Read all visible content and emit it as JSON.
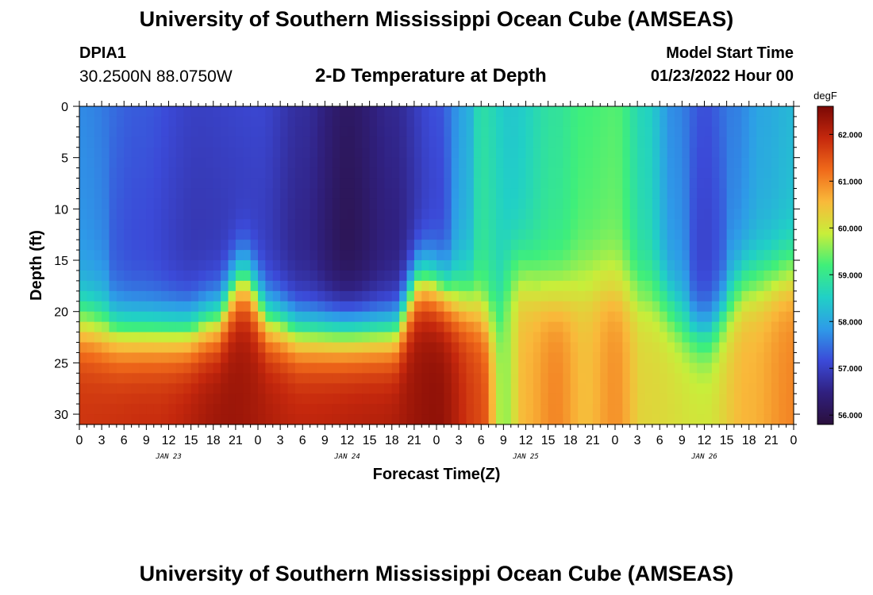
{
  "page": {
    "title_top": "University of Southern Mississippi Ocean Cube (AMSEAS)",
    "title_bottom": "University of Southern Mississippi Ocean Cube (AMSEAS)",
    "station_id": "DPIA1",
    "coordinates": "30.2500N  88.0750W",
    "subtitle": "2-D Temperature at Depth",
    "model_start_label": "Model Start Time",
    "model_start_value": "01/23/2022 Hour 00"
  },
  "chart_data": {
    "type": "heatmap",
    "title": "2-D Temperature at Depth",
    "xlabel": "Forecast Time(Z)",
    "ylabel": "Depth (ft)",
    "y_inverted": true,
    "ylim": [
      0,
      31
    ],
    "y_ticks": [
      0,
      5,
      10,
      15,
      20,
      25,
      30
    ],
    "xlim": [
      0,
      96
    ],
    "x_tick_step_hours": 3,
    "x_tick_labels": [
      "0",
      "3",
      "6",
      "9",
      "12",
      "15",
      "18",
      "21",
      "0",
      "3",
      "6",
      "9",
      "12",
      "15",
      "18",
      "21",
      "0",
      "3",
      "6",
      "9",
      "12",
      "15",
      "18",
      "21",
      "0",
      "3",
      "6",
      "9",
      "12",
      "15",
      "18",
      "21",
      "0"
    ],
    "day_labels": [
      {
        "label": "JAN 23",
        "hour": 12
      },
      {
        "label": "JAN 24",
        "hour": 36
      },
      {
        "label": "JAN 25",
        "hour": 60
      },
      {
        "label": "JAN 26",
        "hour": 84
      }
    ],
    "colorbar": {
      "unit": "degF",
      "min": 55.8,
      "max": 62.6,
      "ticks": [
        "56.000",
        "57.000",
        "58.000",
        "59.000",
        "60.000",
        "61.000",
        "62.000"
      ],
      "colors": [
        "#2a0f3c",
        "#30207f",
        "#3b4ad8",
        "#2e9be8",
        "#21d0c6",
        "#3fef7a",
        "#c8ee3a",
        "#f9b93a",
        "#f06a1a",
        "#c5280d",
        "#7a0805"
      ]
    },
    "thermocline_depth_ft": [
      {
        "hour": 0,
        "depth": 21
      },
      {
        "hour": 6,
        "depth": 22
      },
      {
        "hour": 14,
        "depth": 22
      },
      {
        "hour": 18,
        "depth": 21
      },
      {
        "hour": 22,
        "depth": 17
      },
      {
        "hour": 26,
        "depth": 21
      },
      {
        "hour": 30,
        "depth": 22
      },
      {
        "hour": 42,
        "depth": 22
      },
      {
        "hour": 46,
        "depth": 17
      },
      {
        "hour": 52,
        "depth": 19
      },
      {
        "hour": 56,
        "depth": 21
      },
      {
        "hour": 58,
        "depth": 16
      },
      {
        "hour": 64,
        "depth": 18
      },
      {
        "hour": 70,
        "depth": 17
      },
      {
        "hour": 76,
        "depth": 18
      },
      {
        "hour": 84,
        "depth": 22
      },
      {
        "hour": 90,
        "depth": 17
      },
      {
        "hour": 96,
        "depth": 16
      }
    ],
    "upper_layer_temp_f": [
      {
        "hour": 0,
        "temp": 57.7
      },
      {
        "hour": 8,
        "temp": 57.3
      },
      {
        "hour": 16,
        "temp": 57.0
      },
      {
        "hour": 24,
        "temp": 57.1
      },
      {
        "hour": 30,
        "temp": 56.7
      },
      {
        "hour": 36,
        "temp": 56.2
      },
      {
        "hour": 42,
        "temp": 56.6
      },
      {
        "hour": 48,
        "temp": 57.2
      },
      {
        "hour": 52,
        "temp": 58.0
      },
      {
        "hour": 54,
        "temp": 58.8
      },
      {
        "hour": 58,
        "temp": 58.4
      },
      {
        "hour": 64,
        "temp": 58.9
      },
      {
        "hour": 68,
        "temp": 59.2
      },
      {
        "hour": 72,
        "temp": 59.3
      },
      {
        "hour": 76,
        "temp": 58.6
      },
      {
        "hour": 80,
        "temp": 57.7
      },
      {
        "hour": 84,
        "temp": 57.2
      },
      {
        "hour": 88,
        "temp": 57.6
      },
      {
        "hour": 92,
        "temp": 58.0
      },
      {
        "hour": 96,
        "temp": 58.2
      }
    ],
    "bottom_layer_temp_f": [
      {
        "hour": 0,
        "temp": 61.8
      },
      {
        "hour": 10,
        "temp": 61.9
      },
      {
        "hour": 20,
        "temp": 62.3
      },
      {
        "hour": 30,
        "temp": 62.0
      },
      {
        "hour": 40,
        "temp": 62.1
      },
      {
        "hour": 48,
        "temp": 62.4
      },
      {
        "hour": 54,
        "temp": 61.6
      },
      {
        "hour": 57,
        "temp": 59.6
      },
      {
        "hour": 60,
        "temp": 60.6
      },
      {
        "hour": 64,
        "temp": 61.0
      },
      {
        "hour": 68,
        "temp": 60.5
      },
      {
        "hour": 72,
        "temp": 60.9
      },
      {
        "hour": 76,
        "temp": 60.2
      },
      {
        "hour": 84,
        "temp": 60.0
      },
      {
        "hour": 90,
        "temp": 60.6
      },
      {
        "hour": 96,
        "temp": 61.0
      }
    ]
  }
}
